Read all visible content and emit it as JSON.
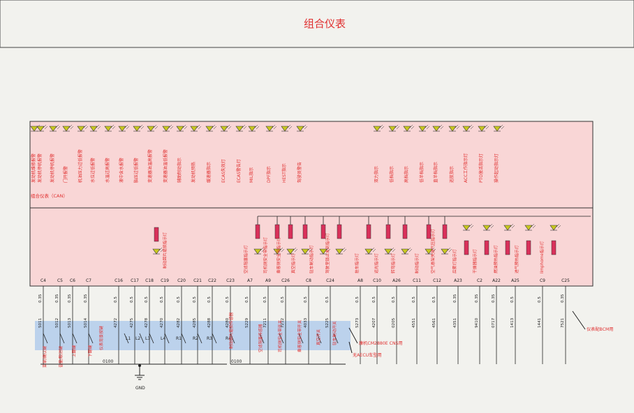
{
  "title": "组合仪表",
  "can_label": "组合仪表（CAN）",
  "can_lamps": [
    "发动机维修报警",
    "发动机停机报警",
    "发动机停机报警",
    "门开报警",
    "机油压力过低报警",
    "水位过低报警",
    "水温过高报警",
    "液中含水报警",
    "胎压过低报警",
    "变速器油温高报警",
    "变速器油温低报警",
    "辅助制动指示",
    "发动机预热",
    "缓速器指示",
    "ECAS失效灯",
    "ECAS警告灯",
    "MIL指示",
    "DPF指示",
    "HEST指示",
    "驾驶员警告",
    "双力指示",
    "低档指示",
    "高档指示",
    "低半档指示",
    "直半档指示",
    "巡航指示",
    "ACC工作指示灯",
    "PTO激活指示灯",
    "操作起动指示灯"
  ],
  "hw_lamps": [
    "制动蹄片磨损指示灯",
    "空滤阻塞指示灯",
    "司机侧安全带指示灯",
    "乘客侧安全带指示灯",
    "真空指示灯",
    "驻车制动指示灯",
    "驾驶室锁止未到指示灯",
    "挂车指示灯",
    "远光指示灯",
    "转弯指示灯",
    "制动指示灯",
    "空气悬架失效气压指示灯",
    "后雾灯指示灯",
    "干燥器指示灯",
    "燃油预热指示灯",
    "进气预热指示灯",
    "limphome指示灯"
  ],
  "pins": [
    "C4",
    "C5",
    "C6",
    "C7",
    "C16",
    "C17",
    "C18",
    "C19",
    "C20",
    "C21",
    "C22",
    "C23",
    "A7",
    "A9",
    "C26",
    "C8",
    "C24",
    "A8",
    "C10",
    "A26",
    "C11",
    "C12",
    "A23",
    "C2",
    "A22",
    "A25",
    "C9",
    "C25"
  ],
  "wire_sizes": [
    "0.35",
    "0.35",
    "0.35",
    "0.35",
    "0.5",
    "0.5",
    "0.5",
    "0.5",
    "0.5",
    "0.5",
    "0.5",
    "0.5",
    "0.5",
    "0.5",
    "0.5",
    "0.5",
    "0.5",
    "0.5",
    "0.5",
    "0.5",
    "0.5",
    "0.5",
    "0.35",
    "0.35",
    "0.35",
    "0.5",
    "0.5",
    "0.35"
  ],
  "wire_numbers": [
    "5011",
    "5012",
    "5013",
    "5014",
    "4272",
    "4275",
    "4278",
    "4270",
    "4282",
    "4285",
    "4288",
    "4280",
    "5229",
    "7211",
    "7212",
    "4033",
    "5225",
    "5273",
    "4207",
    "0205",
    "4551",
    "4561",
    "4351",
    "9410",
    "0717",
    "1413",
    "1441",
    "7521"
  ],
  "switch_labels": [
    "菜单/确认键",
    "音量/取消键",
    "上翻键",
    "下翻键",
    "仪表背景按键",
    "L1",
    "L2",
    "L3",
    "L4",
    "R1",
    "R2",
    "R3",
    "R4",
    "制动蹄片磨损传感器",
    "空滤阻塞传感器",
    "司机侧安全带开关",
    "乘客侧安全带开关",
    "真空开关",
    "驻车制动开关"
  ],
  "ground_label": "GND",
  "ground_wire_1": "0100",
  "ground_wire_2": "0100",
  "note_cm2880": "康机CM2880E CNS用",
  "note_no_aecu": "无AECU车型用",
  "note_bcm": "仪表配BCM用",
  "colors": {
    "bg": "#f2f2ee",
    "panel": "#f9d6d6",
    "blue": "#bcd2ec",
    "red": "#e03030",
    "fuse": "#d9305a",
    "led": "#c8c820",
    "line": "#222222"
  }
}
